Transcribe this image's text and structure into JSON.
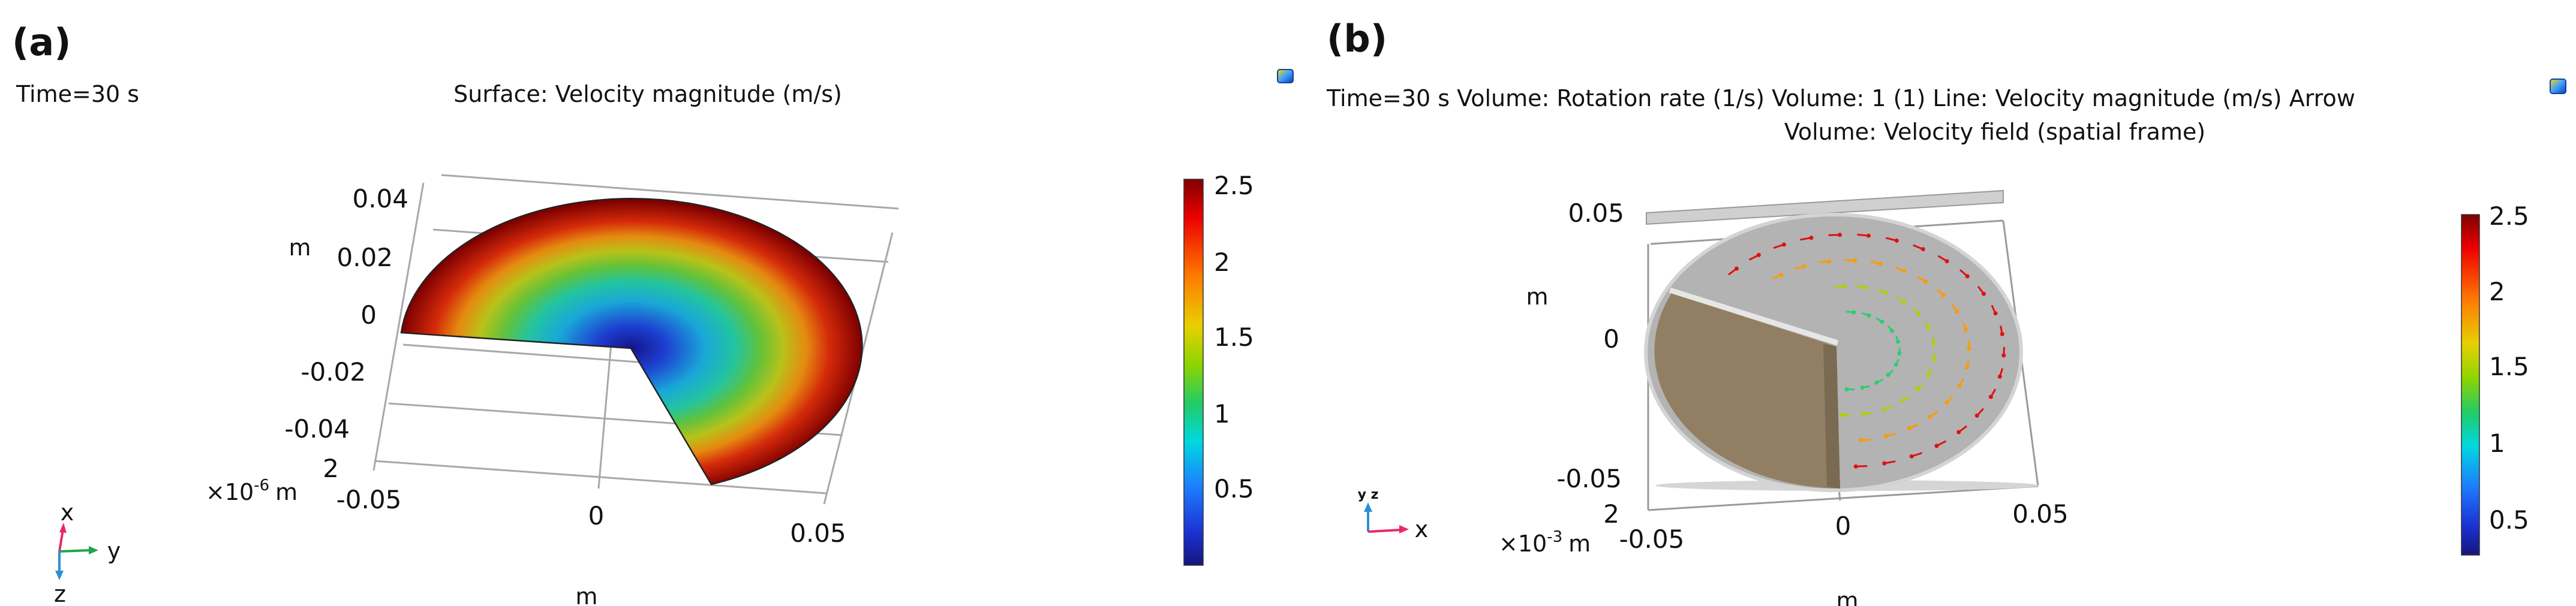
{
  "panel_a": {
    "label": "(a)",
    "time": "Time=30 s",
    "title": "Surface: Velocity magnitude (m/s)",
    "y_ticks": [
      "0.04",
      "0.02",
      "0",
      "-0.02",
      "-0.04"
    ],
    "y_unit": "m",
    "z_tick": "2",
    "z_scale": "×10",
    "z_exp": "-6",
    "z_unit": "m",
    "x_ticks": [
      "-0.05",
      "0",
      "0.05"
    ],
    "x_unit": "m",
    "triad": {
      "x": "x",
      "y": "y",
      "z": "z"
    },
    "colorbar": {
      "ticks": [
        "2.5",
        "2",
        "1.5",
        "1",
        "0.5"
      ],
      "range": [
        0,
        2.5
      ]
    }
  },
  "panel_b": {
    "label": "(b)",
    "title_line1": "Time=30 s Volume: Rotation rate (1/s)  Volume: 1 (1)  Line: Velocity magnitude (m/s)  Arrow",
    "title_line2": "Volume: Velocity field (spatial frame)",
    "y_ticks": [
      "0.05",
      "0",
      "-0.05"
    ],
    "y_unit": "m",
    "z_tick": "2",
    "z_scale": "×10",
    "z_exp": "-3",
    "z_unit": "m",
    "x_ticks": [
      "-0.05",
      "0",
      "0.05"
    ],
    "x_unit": "m",
    "triad": {
      "x": "x",
      "yz": "y z"
    },
    "colorbar": {
      "ticks": [
        "2.5",
        "2",
        "1.5",
        "1",
        "0.5"
      ],
      "range": [
        0.27,
        2.5
      ]
    }
  },
  "colors": {
    "jet": [
      "#7f0000",
      "#e00000",
      "#ff3a00",
      "#ff9a00",
      "#e6e600",
      "#7fd400",
      "#2ecc71",
      "#00d4d4",
      "#1e90ff",
      "#1030c0",
      "#16167a"
    ],
    "brown": "#927f63",
    "disk": "#b3b3b3"
  }
}
